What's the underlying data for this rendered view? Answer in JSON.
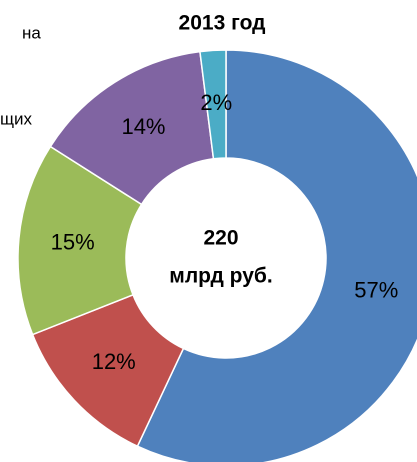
{
  "chart_data": {
    "type": "donut",
    "title": "2013 год",
    "center_text": [
      "220",
      "млрд руб."
    ],
    "values": [
      57,
      12,
      15,
      14,
      2
    ],
    "value_labels": [
      "57%",
      "12%",
      "15%",
      "14%",
      "2%"
    ],
    "colors": [
      "#4f81bd",
      "#c0504d",
      "#9bbb59",
      "#8064a2",
      "#4bacc6"
    ],
    "annotations": [
      "на",
      "щих"
    ]
  }
}
